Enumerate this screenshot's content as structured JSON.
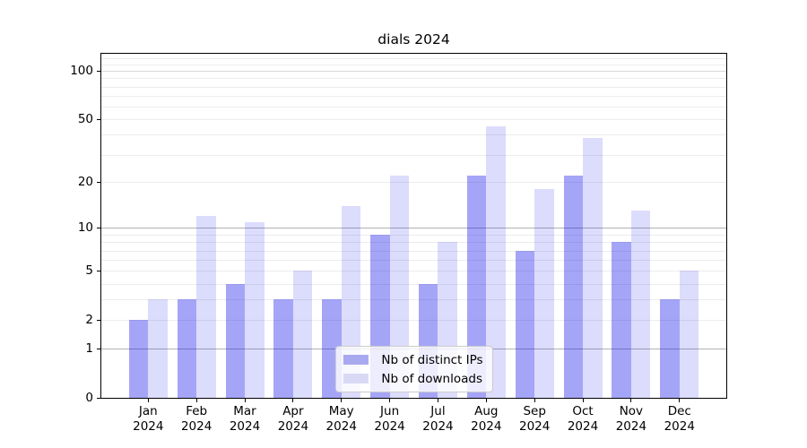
{
  "window": {
    "background": "#ffffff"
  },
  "chart_data": {
    "type": "bar",
    "title": "dials 2024",
    "categories": [
      "Jan",
      "Feb",
      "Mar",
      "Apr",
      "May",
      "Jun",
      "Jul",
      "Aug",
      "Sep",
      "Oct",
      "Nov",
      "Dec"
    ],
    "category_year": "2024",
    "series": [
      {
        "name": "Nb of distinct IPs",
        "color": "#a9a9f0",
        "fill": "rgba(10,10,235,0.37)",
        "values": [
          2,
          3,
          4,
          3,
          3,
          9,
          4,
          22,
          7,
          22,
          8,
          3
        ]
      },
      {
        "name": "Nb of downloads",
        "color": "#d9d9f6",
        "fill": "rgba(10,10,235,0.14)",
        "values": [
          3,
          12,
          11,
          5,
          14,
          22,
          8,
          45,
          18,
          38,
          13,
          5
        ]
      }
    ],
    "yticks": [
      0,
      1,
      2,
      5,
      10,
      20,
      50,
      100
    ],
    "scale": "log10(1+x)",
    "ylim": [
      0,
      130
    ],
    "grid": true,
    "legend_position": "lower center",
    "grid_major_color": "#b2b2b2",
    "grid_top_color": "#d8d8d8",
    "grid_minor_color": "#ececec"
  }
}
